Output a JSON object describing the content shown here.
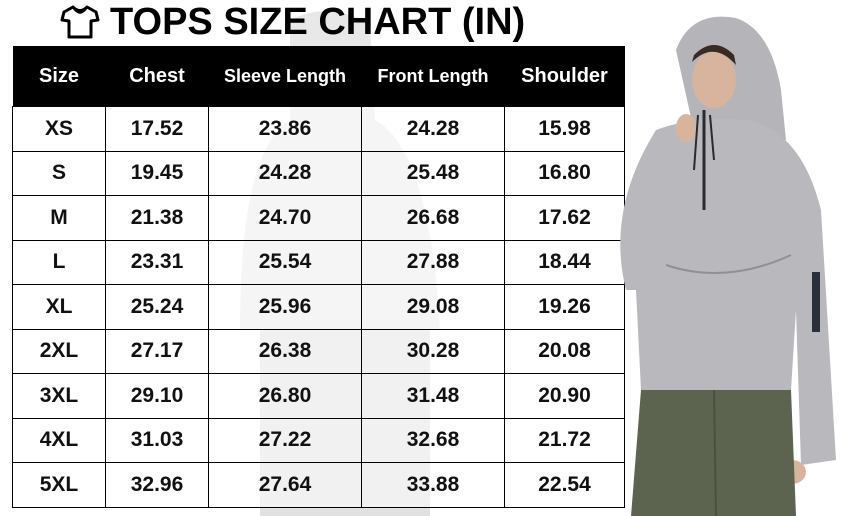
{
  "title": "TOPS SIZE CHART (IN)",
  "title_icon": "t-shirt-icon",
  "table": {
    "columns": [
      "Size",
      "Chest",
      "Sleeve Length",
      "Front Length",
      "Shoulder"
    ],
    "rows": [
      [
        "XS",
        "17.52",
        "23.86",
        "24.28",
        "15.98"
      ],
      [
        "S",
        "19.45",
        "24.28",
        "25.48",
        "16.80"
      ],
      [
        "M",
        "21.38",
        "24.70",
        "26.68",
        "17.62"
      ],
      [
        "L",
        "23.31",
        "25.54",
        "27.88",
        "18.44"
      ],
      [
        "XL",
        "25.24",
        "25.96",
        "29.08",
        "19.26"
      ],
      [
        "2XL",
        "27.17",
        "26.38",
        "30.28",
        "20.08"
      ],
      [
        "3XL",
        "29.10",
        "26.80",
        "31.48",
        "20.90"
      ],
      [
        "4XL",
        "31.03",
        "27.22",
        "32.68",
        "21.72"
      ],
      [
        "5XL",
        "32.96",
        "27.64",
        "33.88",
        "22.54"
      ]
    ]
  },
  "colors": {
    "header_bg": "#000000",
    "header_text": "#ffffff",
    "hoodie": "#b9b9bd",
    "pants": "#5c6450"
  }
}
